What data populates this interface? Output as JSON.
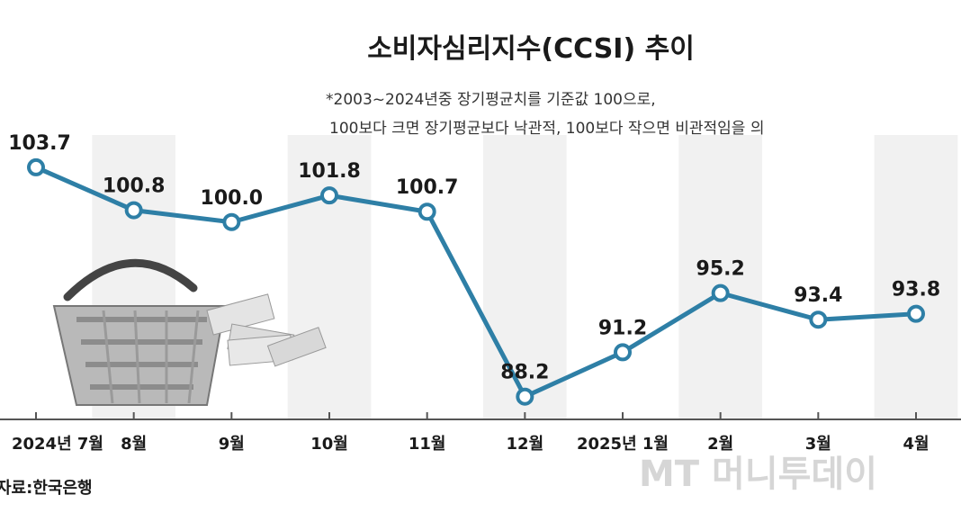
{
  "chart_data": {
    "type": "line",
    "title": "소비자심리지수(CCSI) 추이",
    "note": [
      "*2003~2024년중 장기평균치를 기준값 100으로,",
      "100보다 크면 장기평균보다 낙관적, 100보다 작으면 비관적임을 의"
    ],
    "categories": [
      "2024년 7월",
      "8월",
      "9월",
      "10월",
      "11월",
      "12월",
      "2025년 1월",
      "2월",
      "3월",
      "4월"
    ],
    "values": [
      103.7,
      100.8,
      100.0,
      101.8,
      100.7,
      88.2,
      91.2,
      95.2,
      93.4,
      93.8
    ],
    "value_labels": [
      "103.7",
      "100.8",
      "100.0",
      "101.8",
      "100.7",
      "88.2",
      "91.2",
      "95.2",
      "93.4",
      "93.8"
    ],
    "ylim": [
      86,
      106
    ],
    "xlabel": "",
    "ylabel": "",
    "grid": false,
    "line_color": "#2e7fa6"
  },
  "source": "자료:한국은행",
  "watermark": "MT 머니투데이"
}
